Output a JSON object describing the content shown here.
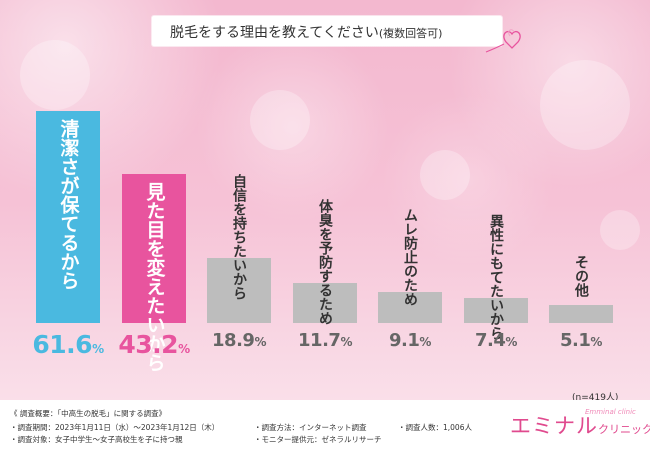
{
  "title": {
    "main": "脱毛をする理由を教えてください",
    "sub": "(複数回答可)"
  },
  "chart_data": {
    "type": "bar",
    "categories": [
      "清潔さが保てるから",
      "見た目を変えたいから",
      "自信を持ちたいから",
      "体臭を予防するため",
      "ムレ防止のため",
      "異性にもてたいから",
      "その他"
    ],
    "values": [
      61.6,
      43.2,
      18.9,
      11.7,
      9.1,
      7.4,
      5.1
    ],
    "value_labels": [
      {
        "num": "61.6",
        "pct": "%"
      },
      {
        "num": "43.2",
        "pct": "%"
      },
      {
        "num": "18.9",
        "pct": "%"
      },
      {
        "num": "11.7",
        "pct": "%"
      },
      {
        "num": "9.1",
        "pct": "%"
      },
      {
        "num": "7.4",
        "pct": "%"
      },
      {
        "num": "5.1",
        "pct": "%"
      }
    ],
    "colors": [
      "#4ab9e0",
      "#e8549e",
      "#bdbdbd",
      "#bdbdbd",
      "#bdbdbd",
      "#bdbdbd",
      "#bdbdbd"
    ],
    "label_colors": [
      "#ffffff",
      "#ffffff",
      "#333333",
      "#333333",
      "#333333",
      "#333333",
      "#333333"
    ],
    "value_colors": [
      "#4ab9e0",
      "#e8549e",
      "#666666",
      "#666666",
      "#666666",
      "#666666",
      "#666666"
    ],
    "ylim": [
      0,
      61.6
    ],
    "grid": false,
    "legend": "none",
    "xlabel": "",
    "ylabel": ""
  },
  "note": "(n=419人)",
  "footer": {
    "heading": "《 調査概要：「中高生の脱毛」に関する調査》",
    "period": "・調査期間：2023年1月11日（水）～2023年1月12日（木）",
    "method": "・調査方法：インターネット調査",
    "count": "・調査人数：1,006人",
    "target": "・調査対象：女子中学生～女子高校生を子に持つ親",
    "provider": "・モニター提供元：ゼネラルリサーチ"
  },
  "brand": {
    "name_big": "エミナル",
    "name_small": "クリニック",
    "script": "Emminal clinic"
  }
}
